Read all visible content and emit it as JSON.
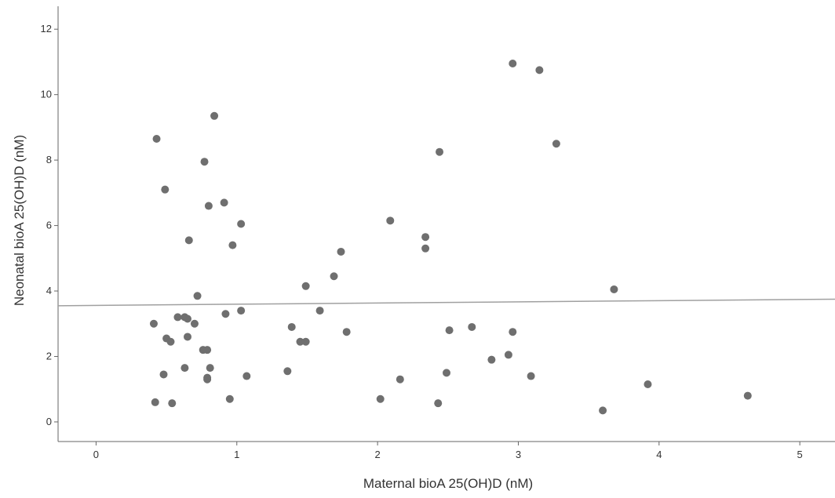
{
  "chart_data": {
    "type": "scatter",
    "title": "",
    "xlabel": "Maternal bioA 25(OH)D (nM)",
    "ylabel": "Neonatal bioA 25(OH)D (nM)",
    "xlim": [
      -0.27,
      5.25
    ],
    "ylim": [
      -0.6,
      12.7
    ],
    "xticks": [
      0,
      1,
      2,
      3,
      4,
      5
    ],
    "yticks": [
      0,
      2,
      4,
      6,
      8,
      10,
      12
    ],
    "grid": false,
    "legend": "none",
    "colors": {
      "point": "#6f6f6f",
      "fit_line": "#a0a0a0",
      "axis": "#666666"
    },
    "fit_line": {
      "x": [
        -0.27,
        5.25
      ],
      "y": [
        3.55,
        3.75
      ]
    },
    "series": [
      {
        "points": [
          [
            0.43,
            8.65
          ],
          [
            0.49,
            7.1
          ],
          [
            0.84,
            9.35
          ],
          [
            0.77,
            7.95
          ],
          [
            0.8,
            6.6
          ],
          [
            0.91,
            6.7
          ],
          [
            1.03,
            6.05
          ],
          [
            0.66,
            5.55
          ],
          [
            0.97,
            5.4
          ],
          [
            0.72,
            3.85
          ],
          [
            0.41,
            3.0
          ],
          [
            0.58,
            3.2
          ],
          [
            0.63,
            3.2
          ],
          [
            0.65,
            3.15
          ],
          [
            0.7,
            3.0
          ],
          [
            0.92,
            3.3
          ],
          [
            1.03,
            3.4
          ],
          [
            0.5,
            2.55
          ],
          [
            0.53,
            2.45
          ],
          [
            0.65,
            2.6
          ],
          [
            0.76,
            2.2
          ],
          [
            0.79,
            2.2
          ],
          [
            0.63,
            1.65
          ],
          [
            0.81,
            1.65
          ],
          [
            0.48,
            1.45
          ],
          [
            0.79,
            1.3
          ],
          [
            0.79,
            1.35
          ],
          [
            1.07,
            1.4
          ],
          [
            0.42,
            0.6
          ],
          [
            0.54,
            0.57
          ],
          [
            0.95,
            0.7
          ],
          [
            2.96,
            10.95
          ],
          [
            3.15,
            10.75
          ],
          [
            3.27,
            8.5
          ],
          [
            2.44,
            8.25
          ],
          [
            2.09,
            6.15
          ],
          [
            2.34,
            5.65
          ],
          [
            2.34,
            5.3
          ],
          [
            1.74,
            5.2
          ],
          [
            1.69,
            4.45
          ],
          [
            1.49,
            4.15
          ],
          [
            3.68,
            4.05
          ],
          [
            1.59,
            3.4
          ],
          [
            1.39,
            2.9
          ],
          [
            1.78,
            2.75
          ],
          [
            1.45,
            2.45
          ],
          [
            1.49,
            2.45
          ],
          [
            2.51,
            2.8
          ],
          [
            2.67,
            2.9
          ],
          [
            2.96,
            2.75
          ],
          [
            2.93,
            2.05
          ],
          [
            2.81,
            1.9
          ],
          [
            1.36,
            1.55
          ],
          [
            2.49,
            1.5
          ],
          [
            3.09,
            1.4
          ],
          [
            2.16,
            1.3
          ],
          [
            3.92,
            1.15
          ],
          [
            2.02,
            0.7
          ],
          [
            2.43,
            0.57
          ],
          [
            4.63,
            0.8
          ],
          [
            3.6,
            0.35
          ]
        ]
      }
    ]
  }
}
